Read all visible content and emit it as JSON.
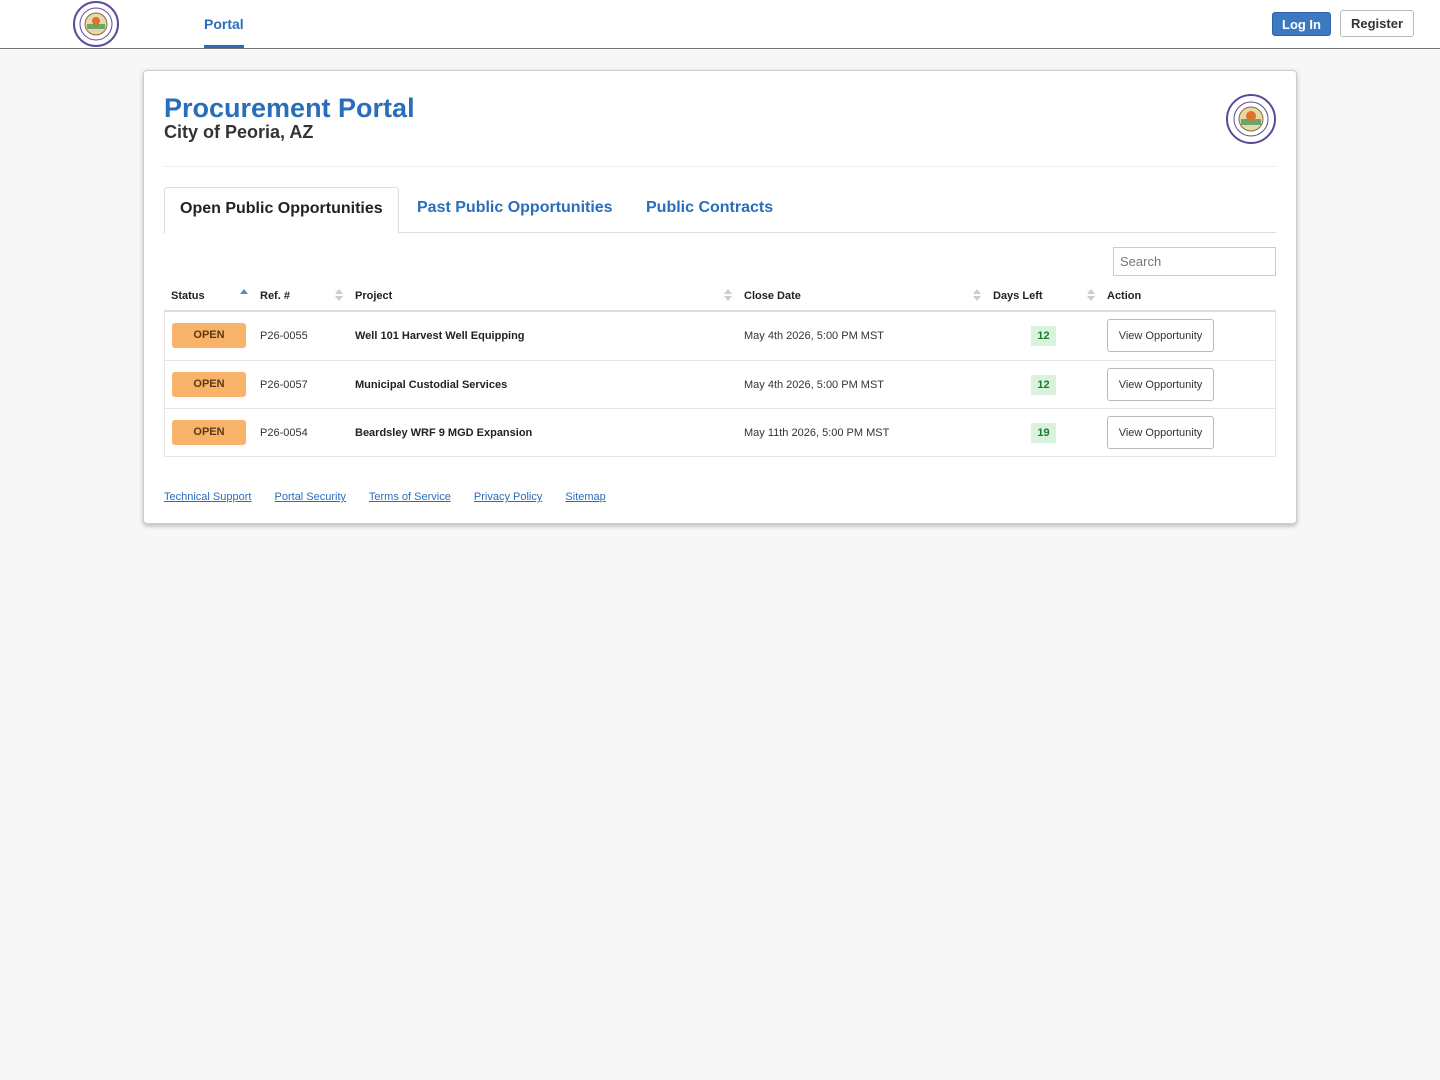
{
  "topbar": {
    "logo_icon": "city-seal-icon",
    "nav_portal": "Portal",
    "login_label": "Log In",
    "register_label": "Register"
  },
  "header": {
    "title": "Procurement Portal",
    "subtitle": "City of Peoria, AZ",
    "seal_icon": "city-seal-icon"
  },
  "tabs": [
    {
      "label": "Open Public Opportunities",
      "active": true
    },
    {
      "label": "Past Public Opportunities",
      "active": false
    },
    {
      "label": "Public Contracts",
      "active": false
    }
  ],
  "search": {
    "placeholder": "Search"
  },
  "table": {
    "columns": [
      "Status",
      "Ref. #",
      "Project",
      "Close Date",
      "Days Left",
      "Action"
    ],
    "rows": [
      {
        "status": "OPEN",
        "ref": "P26-0055",
        "project": "Well 101 Harvest Well Equipping",
        "close_date": "May 4th 2026, 5:00 PM MST",
        "days_left": "12",
        "action": "View Opportunity"
      },
      {
        "status": "OPEN",
        "ref": "P26-0057",
        "project": "Municipal Custodial Services",
        "close_date": "May 4th 2026, 5:00 PM MST",
        "days_left": "12",
        "action": "View Opportunity"
      },
      {
        "status": "OPEN",
        "ref": "P26-0054",
        "project": "Beardsley WRF 9 MGD Expansion",
        "close_date": "May 11th 2026, 5:00 PM MST",
        "days_left": "19",
        "action": "View Opportunity"
      }
    ]
  },
  "footer": {
    "links": [
      "Technical Support",
      "Portal Security",
      "Terms of Service",
      "Privacy Policy",
      "Sitemap"
    ]
  },
  "colors": {
    "brand_blue": "#2a6ebb",
    "open_badge": "#f8b26a",
    "days_badge": "#d9f2dc"
  }
}
